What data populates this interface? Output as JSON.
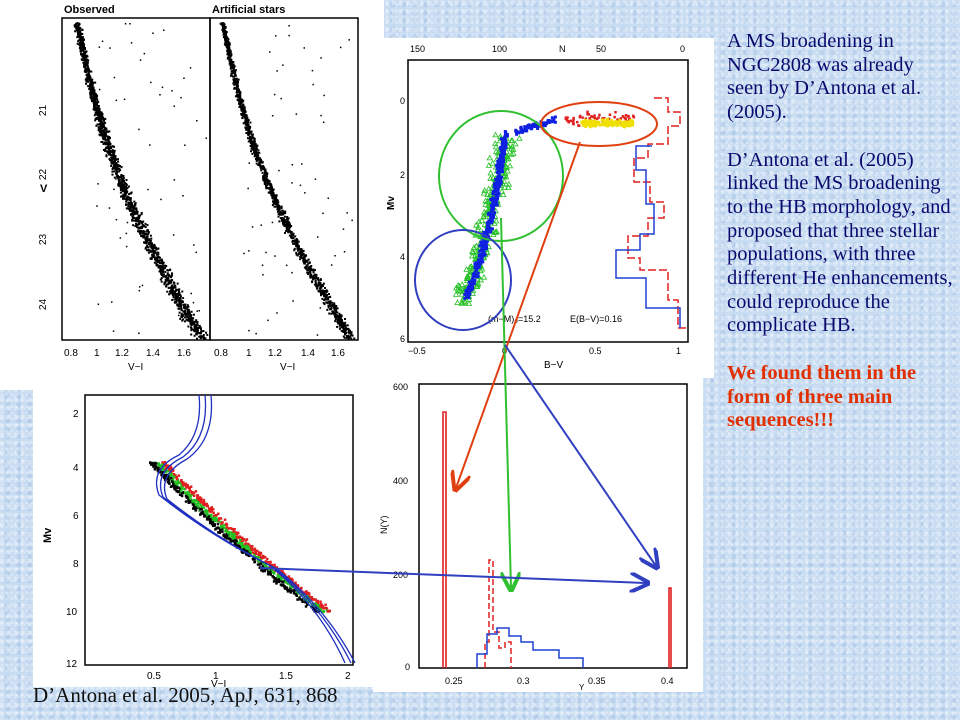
{
  "panel_tl": {
    "left_title": "Observed",
    "right_title": "Artificial stars",
    "ylabel": "V",
    "yticks": [
      "21",
      "22",
      "23",
      "24"
    ],
    "xticks": [
      "0.8",
      "1",
      "1.2",
      "1.4",
      "1.6"
    ],
    "xlabel": "V−I"
  },
  "panel_tr": {
    "top_label": "N",
    "top_ticks": [
      "150",
      "100",
      "50",
      "0"
    ],
    "ylabel": "Mv",
    "yticks": [
      "0",
      "2",
      "4",
      "6"
    ],
    "xlabel": "B−V",
    "xticks": [
      "−0.5",
      "0",
      "0.5",
      "1"
    ],
    "annotation_left": "(m−M)₀=15.2",
    "annotation_right": "E(B−V)=0.16"
  },
  "panel_bl": {
    "ylabel": "Mv",
    "yticks": [
      "2",
      "4",
      "6",
      "8",
      "10",
      "12"
    ],
    "xticks": [
      "0.5",
      "1",
      "1.5",
      "2"
    ],
    "xlabel": "V−I"
  },
  "panel_br": {
    "ylabel": "N(Y)",
    "yticks": [
      "600",
      "400",
      "200",
      "0"
    ],
    "xticks": [
      "0.25",
      "0.3",
      "0.35",
      "0.4"
    ],
    "xlabel": "Y"
  },
  "text": {
    "p1": "A MS broadening in NGC2808 was already seen by D’Antona et al. (2005).",
    "p2": "D’Antona et al. (2005) linked the MS broadening to the HB morphology, and proposed that three stellar populations, with three different He enhancements, could reproduce the complicate HB.",
    "p3": "We found them in the form of three main sequences!!!",
    "citation": "D’Antona et al. 2005, ApJ, 631, 868"
  },
  "colors": {
    "background": "#c8dcf2",
    "text": "#0a0a6e",
    "highlight": "#e03000",
    "arrow_red": "#e04010",
    "arrow_green": "#30c030",
    "arrow_blue": "#3040c0"
  }
}
